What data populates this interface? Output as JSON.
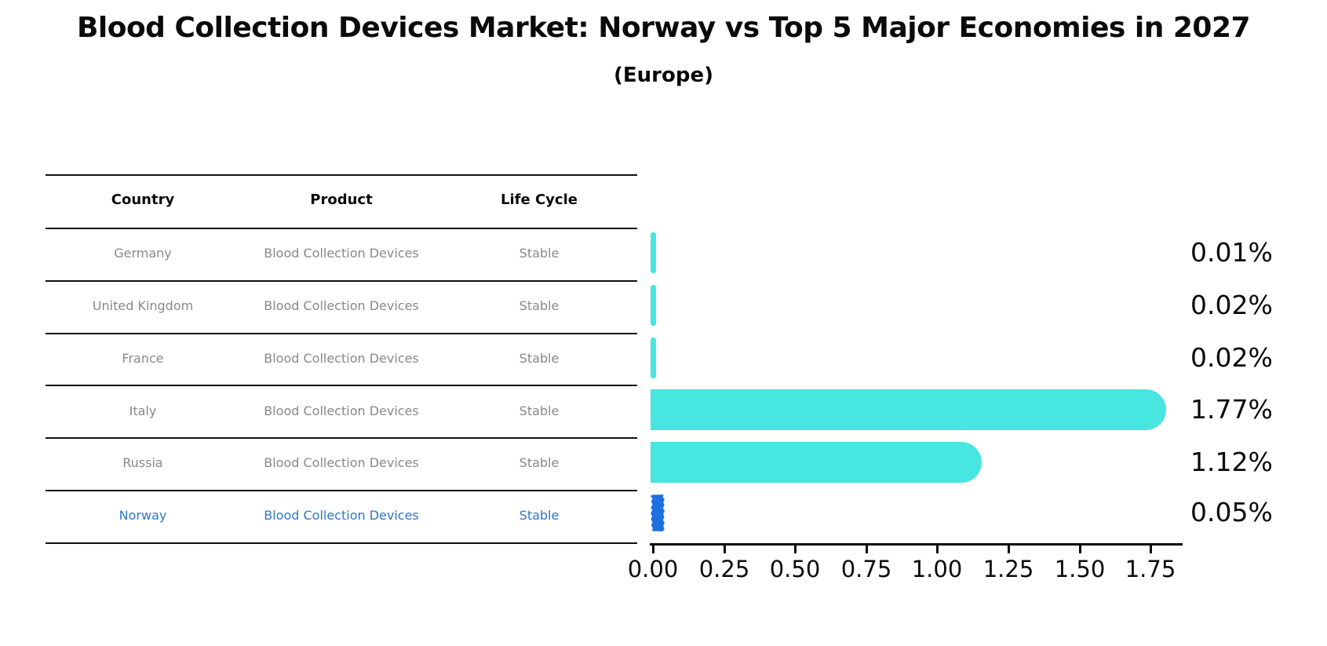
{
  "title": "Blood Collection Devices Market: Norway vs Top 5 Major Economies in 2027",
  "subtitle": "(Europe)",
  "table": {
    "headers": [
      "Country",
      "Product",
      "Life Cycle"
    ],
    "rows": [
      {
        "country": "Germany",
        "product": "Blood Collection Devices",
        "life_cycle": "Stable",
        "highlight": false
      },
      {
        "country": "United Kingdom",
        "product": "Blood Collection Devices",
        "life_cycle": "Stable",
        "highlight": false
      },
      {
        "country": "France",
        "product": "Blood Collection Devices",
        "life_cycle": "Stable",
        "highlight": false
      },
      {
        "country": "Italy",
        "product": "Blood Collection Devices",
        "life_cycle": "Stable",
        "highlight": false
      },
      {
        "country": "Russia",
        "product": "Blood Collection Devices",
        "life_cycle": "Stable",
        "highlight": false
      },
      {
        "country": "Norway",
        "product": "Blood Collection Devices",
        "life_cycle": "Stable",
        "highlight": true
      }
    ]
  },
  "chart_data": {
    "type": "bar",
    "orientation": "horizontal",
    "title": "Blood Collection Devices Market: Norway vs Top 5 Major Economies in 2027",
    "subtitle": "(Europe)",
    "categories": [
      "Germany",
      "United Kingdom",
      "France",
      "Italy",
      "Russia",
      "Norway"
    ],
    "values": [
      0.01,
      0.02,
      0.02,
      1.77,
      1.12,
      0.05
    ],
    "value_labels": [
      "0.01%",
      "0.02%",
      "0.02%",
      "1.77%",
      "1.12%",
      "0.05%"
    ],
    "x_tick_labels": [
      "0.00",
      "0.25",
      "0.50",
      "0.75",
      "1.00",
      "1.25",
      "1.50",
      "1.75"
    ],
    "x_tick_values": [
      0.0,
      0.25,
      0.5,
      0.75,
      1.0,
      1.25,
      1.5,
      1.75
    ],
    "xlim": [
      0,
      1.86
    ],
    "grid": false,
    "legend": false,
    "bar_color": "#47e6e0",
    "highlight_bar_color": "#1e70e0",
    "highlight_text_color": "#2e76c8",
    "row_text_color": "#888888",
    "highlight_index": 5
  }
}
